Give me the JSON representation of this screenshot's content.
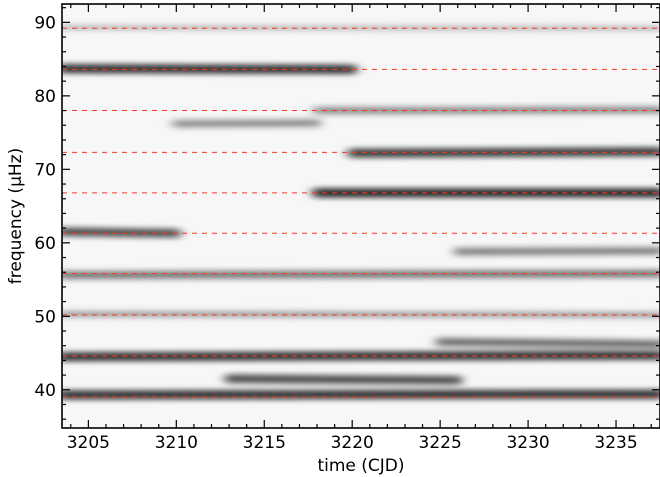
{
  "chart_data": {
    "type": "heatmap",
    "xlabel": "time (CJD)",
    "ylabel": "frequency (μHz)",
    "xlim": [
      3203.5,
      3237.5
    ],
    "ylim": [
      34.8,
      92.5
    ],
    "x_ticks": [
      3205,
      3210,
      3215,
      3220,
      3225,
      3230,
      3235
    ],
    "x_tick_labels": [
      "3205",
      "3210",
      "3215",
      "3220",
      "3225",
      "3230",
      "3235"
    ],
    "y_ticks": [
      40,
      50,
      60,
      70,
      80,
      90
    ],
    "y_tick_labels": [
      "40",
      "50",
      "60",
      "70",
      "80",
      "90"
    ],
    "colormap": "grayscale (white = low power, black = high power)",
    "reference_lines": {
      "style": "dashed",
      "color": "#e8402a",
      "frequencies": [
        39.0,
        44.6,
        50.2,
        55.8,
        61.3,
        66.8,
        72.3,
        78.0,
        83.6,
        89.2
      ]
    },
    "ridges": [
      {
        "freq_start": 39.3,
        "freq_end": 39.4,
        "t_start": 3203.5,
        "t_end": 3237.5,
        "intensity": 0.9
      },
      {
        "freq_start": 41.5,
        "freq_end": 41.3,
        "t_start": 3213,
        "t_end": 3226,
        "intensity": 0.75
      },
      {
        "freq_start": 44.5,
        "freq_end": 44.7,
        "t_start": 3203.5,
        "t_end": 3237.5,
        "intensity": 0.9
      },
      {
        "freq_start": 46.5,
        "freq_end": 46.2,
        "t_start": 3225,
        "t_end": 3237.5,
        "intensity": 0.6
      },
      {
        "freq_start": 50.3,
        "freq_end": 50.2,
        "t_start": 3203.5,
        "t_end": 3237.5,
        "intensity": 0.35
      },
      {
        "freq_start": 55.6,
        "freq_end": 55.8,
        "t_start": 3203.5,
        "t_end": 3237.5,
        "intensity": 0.55
      },
      {
        "freq_start": 58.8,
        "freq_end": 58.9,
        "t_start": 3226,
        "t_end": 3237.5,
        "intensity": 0.5
      },
      {
        "freq_start": 61.5,
        "freq_end": 61.3,
        "t_start": 3203.5,
        "t_end": 3210,
        "intensity": 0.75
      },
      {
        "freq_start": 66.8,
        "freq_end": 66.8,
        "t_start": 3218,
        "t_end": 3237.5,
        "intensity": 0.95
      },
      {
        "freq_start": 72.2,
        "freq_end": 72.4,
        "t_start": 3220,
        "t_end": 3237.5,
        "intensity": 0.85
      },
      {
        "freq_start": 76.2,
        "freq_end": 76.3,
        "t_start": 3210,
        "t_end": 3218,
        "intensity": 0.45
      },
      {
        "freq_start": 78.0,
        "freq_end": 78.1,
        "t_start": 3218,
        "t_end": 3237.5,
        "intensity": 0.45
      },
      {
        "freq_start": 83.7,
        "freq_end": 83.6,
        "t_start": 3203.5,
        "t_end": 3220,
        "intensity": 0.9
      },
      {
        "freq_start": 89.3,
        "freq_end": 89.2,
        "t_start": 3203.5,
        "t_end": 3237.5,
        "intensity": 0.2
      }
    ]
  }
}
